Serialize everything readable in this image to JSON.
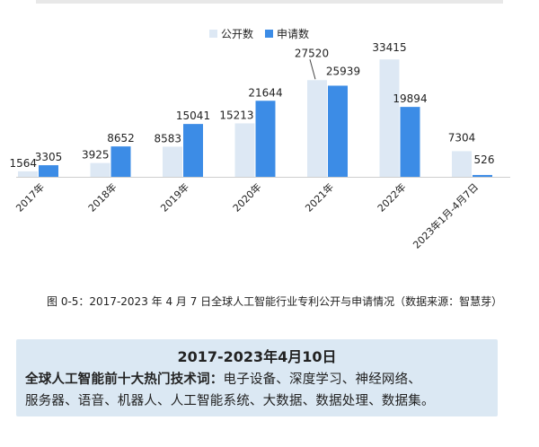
{
  "chart_data": {
    "type": "bar",
    "categories": [
      "2017年",
      "2018年",
      "2019年",
      "2020年",
      "2021年",
      "2022年",
      "2023年1月-4月7日"
    ],
    "series": [
      {
        "name": "公开数",
        "values": [
          1564,
          3925,
          8583,
          15213,
          27520,
          33415,
          7304
        ],
        "color": "#dde8f4"
      },
      {
        "name": "申请数",
        "values": [
          3305,
          8652,
          15041,
          21644,
          25939,
          19894,
          526
        ],
        "color": "#3c8ce6"
      }
    ],
    "ylim": [
      0,
      35000
    ],
    "grid": false,
    "legend_position": "top-center"
  },
  "caption": "图 0-5：2017-2023 年 4 月 7 日全球人工智能行业专利公开与申请情况（数据来源：智慧芽）",
  "info_box": {
    "title": "2017-2023年4月10日",
    "label": "全球人工智能前十大热门技术词：",
    "line1_rest": "电子设备、深度学习、神经网络、",
    "line2": "服务器、语音、机器人、人工智能系统、大数据、数据处理、数据集。"
  }
}
